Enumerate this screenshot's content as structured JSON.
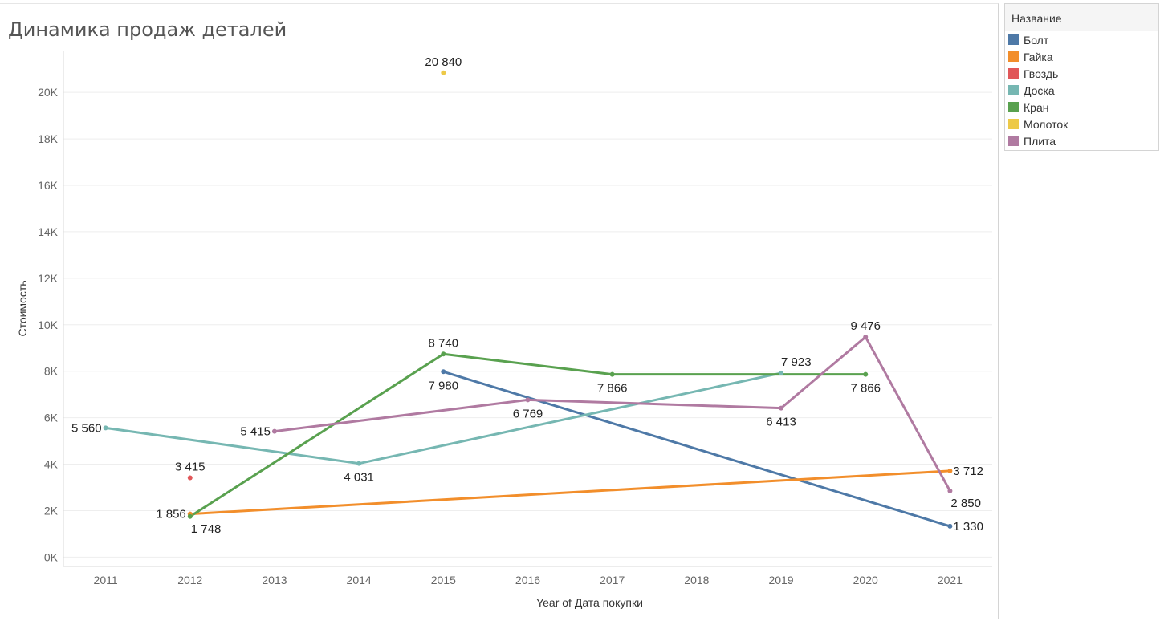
{
  "title": "Динамика продаж деталей",
  "legend": {
    "title": "Название",
    "items": [
      {
        "label": "Болт",
        "color": "#4e79a7"
      },
      {
        "label": "Гайка",
        "color": "#f28e2b"
      },
      {
        "label": "Гвоздь",
        "color": "#e15759"
      },
      {
        "label": "Доска",
        "color": "#76b7b2"
      },
      {
        "label": "Кран",
        "color": "#59a14f"
      },
      {
        "label": "Молоток",
        "color": "#edc948"
      },
      {
        "label": "Плита",
        "color": "#b07aa1"
      }
    ]
  },
  "chart_data": {
    "type": "line",
    "xlabel": "Year of Дата покупки",
    "ylabel": "Стоимость",
    "x_ticks": [
      "2011",
      "2012",
      "2013",
      "2014",
      "2015",
      "2016",
      "2017",
      "2018",
      "2019",
      "2020",
      "2021"
    ],
    "y_ticks": [
      {
        "value": 0,
        "label": "0K"
      },
      {
        "value": 2000,
        "label": "2K"
      },
      {
        "value": 4000,
        "label": "4K"
      },
      {
        "value": 6000,
        "label": "6K"
      },
      {
        "value": 8000,
        "label": "8K"
      },
      {
        "value": 10000,
        "label": "10K"
      },
      {
        "value": 12000,
        "label": "12K"
      },
      {
        "value": 14000,
        "label": "14K"
      },
      {
        "value": 16000,
        "label": "16K"
      },
      {
        "value": 18000,
        "label": "18K"
      },
      {
        "value": 20000,
        "label": "20K"
      }
    ],
    "xlim": [
      2010.5,
      2021.5
    ],
    "ylim": [
      -400,
      21800
    ],
    "series": [
      {
        "name": "Болт",
        "color": "#4e79a7",
        "points": [
          {
            "x": 2015,
            "y": 7980,
            "label": "7 980",
            "pos": "below"
          },
          {
            "x": 2021,
            "y": 1330,
            "label": "1 330",
            "pos": "right"
          }
        ]
      },
      {
        "name": "Гайка",
        "color": "#f28e2b",
        "points": [
          {
            "x": 2012,
            "y": 1856,
            "label": "1 856",
            "pos": "left"
          },
          {
            "x": 2021,
            "y": 3712,
            "label": "3 712",
            "pos": "right"
          }
        ]
      },
      {
        "name": "Гвоздь",
        "color": "#e15759",
        "points": [
          {
            "x": 2012,
            "y": 3415,
            "label": "3 415",
            "pos": "above"
          }
        ]
      },
      {
        "name": "Доска",
        "color": "#76b7b2",
        "points": [
          {
            "x": 2011,
            "y": 5560,
            "label": "5 560",
            "pos": "left"
          },
          {
            "x": 2014,
            "y": 4031,
            "label": "4 031",
            "pos": "below"
          },
          {
            "x": 2019,
            "y": 7923,
            "label": "7 923",
            "pos": "aboveright"
          }
        ]
      },
      {
        "name": "Кран",
        "color": "#59a14f",
        "points": [
          {
            "x": 2012,
            "y": 1748,
            "label": "1 748",
            "pos": "belowright"
          },
          {
            "x": 2015,
            "y": 8740,
            "label": "8 740",
            "pos": "above"
          },
          {
            "x": 2017,
            "y": 7866,
            "label": "7 866",
            "pos": "below"
          },
          {
            "x": 2020,
            "y": 7866,
            "label": "7 866",
            "pos": "below"
          }
        ]
      },
      {
        "name": "Молоток",
        "color": "#edc948",
        "points": [
          {
            "x": 2015,
            "y": 20840,
            "label": "20 840",
            "pos": "above"
          }
        ]
      },
      {
        "name": "Плита",
        "color": "#b07aa1",
        "points": [
          {
            "x": 2013,
            "y": 5415,
            "label": "5 415",
            "pos": "left"
          },
          {
            "x": 2016,
            "y": 6769,
            "label": "6 769",
            "pos": "below"
          },
          {
            "x": 2019,
            "y": 6413,
            "label": "6 413",
            "pos": "below"
          },
          {
            "x": 2020,
            "y": 9476,
            "label": "9 476",
            "pos": "above"
          },
          {
            "x": 2021,
            "y": 2850,
            "label": "2 850",
            "pos": "belowright"
          }
        ]
      }
    ]
  }
}
